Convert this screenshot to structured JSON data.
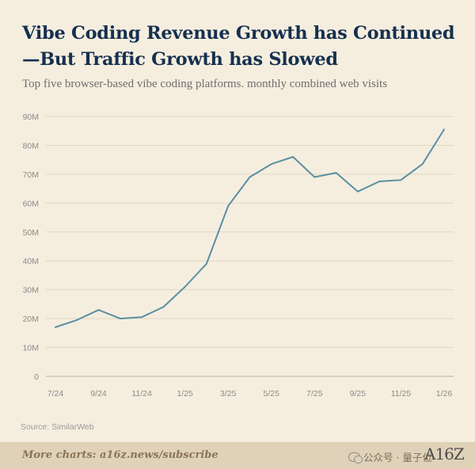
{
  "colors": {
    "background": "#f5eedf",
    "title": "#15304f",
    "line": "#5b8fa3",
    "grid": "#e0d6c2",
    "footer": "#dfd2b8"
  },
  "source": "Source: SimilarWeb",
  "footer": {
    "link_text": "More charts: a16z.news/subscribe",
    "watermark": "公众号 · 量子位",
    "logo": "A16Z"
  },
  "chart_data": {
    "type": "line",
    "title": "Vibe Coding Revenue Growth has Continued—But Traffic Growth has Slowed",
    "subtitle": "Top five browser-based vibe coding platforms. monthly combined web visits",
    "xlabel": "",
    "ylabel": "",
    "ylim": [
      0,
      90
    ],
    "y_ticks": [
      {
        "value": 0,
        "label": "0"
      },
      {
        "value": 10,
        "label": "10M"
      },
      {
        "value": 20,
        "label": "20M"
      },
      {
        "value": 30,
        "label": "30M"
      },
      {
        "value": 40,
        "label": "40M"
      },
      {
        "value": 50,
        "label": "50M"
      },
      {
        "value": 60,
        "label": "60M"
      },
      {
        "value": 70,
        "label": "70M"
      },
      {
        "value": 80,
        "label": "80M"
      },
      {
        "value": 90,
        "label": "90M"
      }
    ],
    "x": [
      "7/24",
      "8/24",
      "9/24",
      "10/24",
      "11/24",
      "12/24",
      "1/25",
      "2/25",
      "3/25",
      "4/25",
      "5/25",
      "6/25",
      "7/25",
      "8/25",
      "9/25",
      "10/25",
      "11/25",
      "12/25",
      "1/26"
    ],
    "x_tick_labels": [
      "7/24",
      "9/24",
      "11/24",
      "1/25",
      "3/25",
      "5/25",
      "7/25",
      "9/25",
      "11/25",
      "1/26"
    ],
    "series": [
      {
        "name": "Monthly combined web visits (M)",
        "values": [
          17,
          19.5,
          23,
          20,
          20.5,
          24,
          31,
          39,
          59,
          69,
          73.5,
          76,
          69,
          70.5,
          64,
          67.5,
          68,
          73.5,
          85.5
        ]
      }
    ]
  }
}
